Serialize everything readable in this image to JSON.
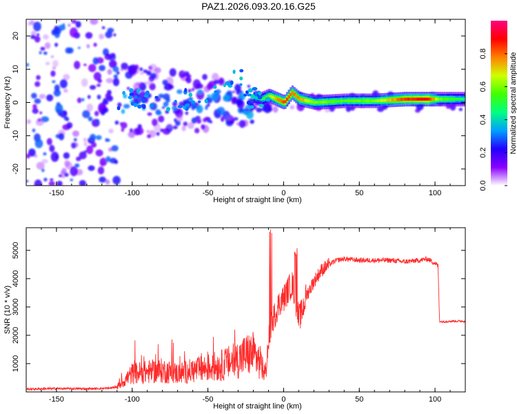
{
  "title": "PAZ1.2026.093.20.16.G25",
  "chart_data": [
    {
      "type": "heatmap",
      "name": "spectrogram",
      "xlabel": "Height of straight line (km)",
      "ylabel": "Frequency (Hz)",
      "xlim": [
        -170,
        120
      ],
      "ylim": [
        -25,
        25
      ],
      "xticks": [
        -150,
        -100,
        -50,
        0,
        50,
        100
      ],
      "yticks": [
        -20,
        -10,
        0,
        10,
        20
      ],
      "colorbar": {
        "label": "Normalized spectral amplitude",
        "range": [
          0,
          1
        ],
        "ticks": [
          0.0,
          0.2,
          0.4,
          0.6,
          0.8
        ],
        "colors": [
          "#ffffff",
          "#8a00ff",
          "#2200ff",
          "#00a0ff",
          "#00ff80",
          "#40ff00",
          "#d0ff00",
          "#ff8000",
          "#ff0000",
          "#ff0080"
        ]
      },
      "ridge": [
        {
          "x": -105,
          "y": 2,
          "amp": 0.25
        },
        {
          "x": -90,
          "y": 1,
          "amp": 0.2
        },
        {
          "x": -75,
          "y": 1,
          "amp": 0.2
        },
        {
          "x": -60,
          "y": 1,
          "amp": 0.22
        },
        {
          "x": -45,
          "y": 2,
          "amp": 0.25
        },
        {
          "x": -30,
          "y": 10,
          "amp": 0.3
        },
        {
          "x": -25,
          "y": 2,
          "amp": 0.3
        },
        {
          "x": -15,
          "y": 1,
          "amp": 0.45
        },
        {
          "x": -10,
          "y": 2,
          "amp": 0.6
        },
        {
          "x": -5,
          "y": 1,
          "amp": 0.75
        },
        {
          "x": 0,
          "y": 0,
          "amp": 0.85
        },
        {
          "x": 5,
          "y": 3,
          "amp": 0.8
        },
        {
          "x": 10,
          "y": 1,
          "amp": 0.75
        },
        {
          "x": 20,
          "y": 0,
          "amp": 0.6
        },
        {
          "x": 40,
          "y": 0.5,
          "amp": 0.55
        },
        {
          "x": 60,
          "y": 0.5,
          "amp": 0.6
        },
        {
          "x": 80,
          "y": 1,
          "amp": 0.85
        },
        {
          "x": 95,
          "y": 1,
          "amp": 0.9
        },
        {
          "x": 102,
          "y": 1,
          "amp": 0.6
        },
        {
          "x": 120,
          "y": 1,
          "amp": 0.45
        }
      ]
    },
    {
      "type": "line",
      "name": "snr",
      "xlabel": "Height of straight line (km)",
      "ylabel": "SNR (10 * v/v)",
      "xlim": [
        -170,
        120
      ],
      "ylim": [
        0,
        5800
      ],
      "xticks": [
        -150,
        -100,
        -50,
        0,
        50,
        100
      ],
      "yticks": [
        1000,
        2000,
        3000,
        4000,
        5000
      ],
      "color": "#ff2a2a",
      "series": [
        {
          "name": "SNR",
          "x": [
            -170,
            -150,
            -130,
            -115,
            -110,
            -105,
            -100,
            -90,
            -80,
            -70,
            -60,
            -50,
            -40,
            -30,
            -25,
            -20,
            -15,
            -12,
            -10,
            -8,
            -6,
            -4,
            -2,
            0,
            2,
            4,
            6,
            8,
            10,
            12,
            15,
            20,
            25,
            30,
            35,
            40,
            50,
            60,
            70,
            80,
            90,
            95,
            100,
            102,
            103,
            105,
            110,
            120
          ],
          "y": [
            100,
            120,
            110,
            130,
            180,
            400,
            650,
            700,
            750,
            650,
            750,
            850,
            950,
            1150,
            1300,
            1350,
            1000,
            600,
            1800,
            2500,
            2700,
            3000,
            3200,
            3300,
            3500,
            3700,
            3800,
            3200,
            2600,
            2800,
            3400,
            3900,
            4300,
            4500,
            4650,
            4700,
            4650,
            4650,
            4650,
            4600,
            4650,
            4700,
            4550,
            4450,
            2500,
            2480,
            2500,
            2500
          ]
        }
      ]
    }
  ]
}
